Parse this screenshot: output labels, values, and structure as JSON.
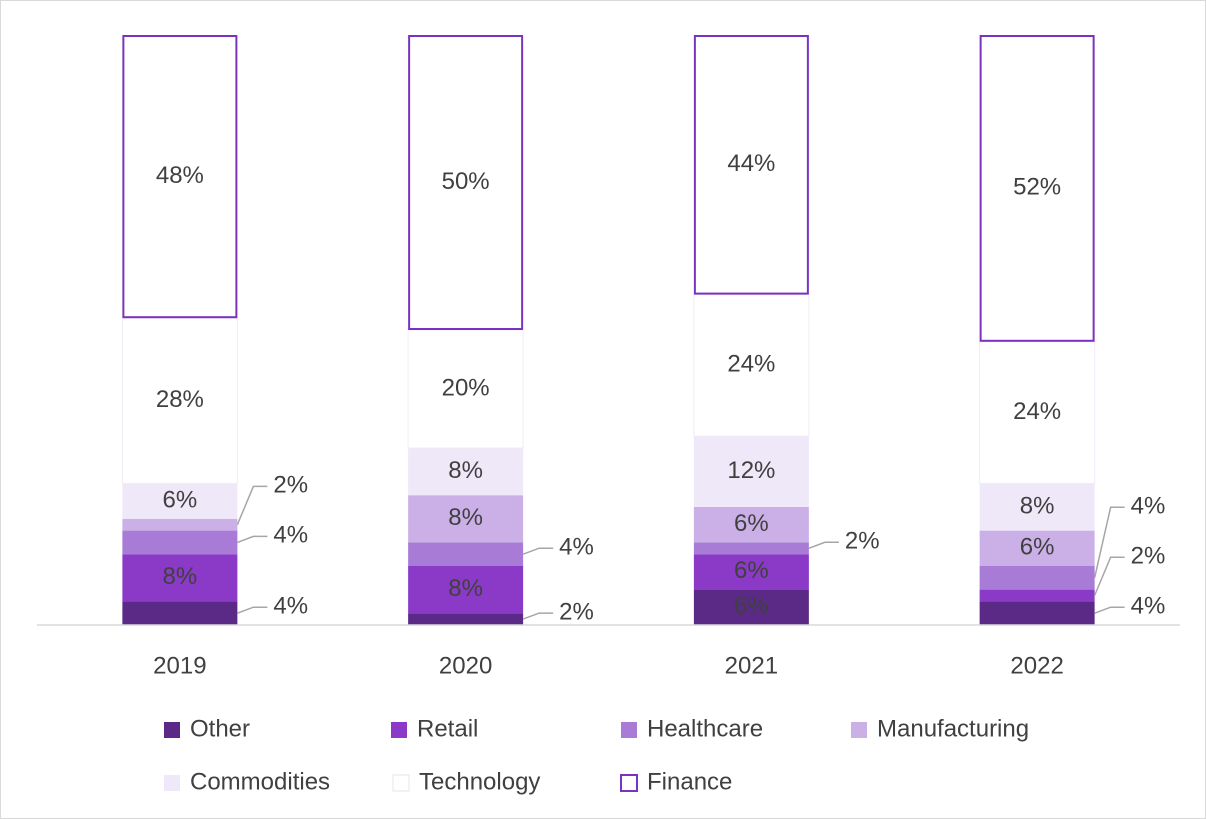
{
  "chart_data": {
    "type": "bar",
    "stacked": true,
    "categories": [
      "2019",
      "2020",
      "2021",
      "2022"
    ],
    "ylim": [
      0,
      100
    ],
    "series": [
      {
        "name": "Other",
        "color": "#5b2a86",
        "values": [
          4,
          2,
          6,
          4
        ],
        "value_labels": [
          "4%",
          "2%",
          "6%",
          "4%"
        ]
      },
      {
        "name": "Retail",
        "color": "#8a3ac6",
        "values": [
          8,
          8,
          6,
          2
        ],
        "value_labels": [
          "8%",
          "8%",
          "6%",
          "2%"
        ]
      },
      {
        "name": "Healthcare",
        "color": "#a77bd6",
        "values": [
          4,
          4,
          2,
          4
        ],
        "value_labels": [
          "4%",
          "4%",
          "2%",
          "4%"
        ]
      },
      {
        "name": "Manufacturing",
        "color": "#cbb0e8",
        "values": [
          2,
          8,
          6,
          6
        ],
        "value_labels": [
          "2%",
          "8%",
          "6%",
          "6%"
        ]
      },
      {
        "name": "Commodities",
        "color": "#efe8f8",
        "values": [
          6,
          8,
          12,
          8
        ],
        "value_labels": [
          "6%",
          "8%",
          "12%",
          "8%"
        ]
      },
      {
        "name": "Technology",
        "color": "#ffffff",
        "values": [
          28,
          20,
          24,
          24
        ],
        "value_labels": [
          "28%",
          "20%",
          "24%",
          "24%"
        ]
      },
      {
        "name": "Finance",
        "color": "#ffffff",
        "border": "#7b32c0",
        "values": [
          48,
          50,
          44,
          52
        ],
        "value_labels": [
          "48%",
          "50%",
          "44%",
          "52%"
        ]
      }
    ],
    "legend": "bottom"
  }
}
